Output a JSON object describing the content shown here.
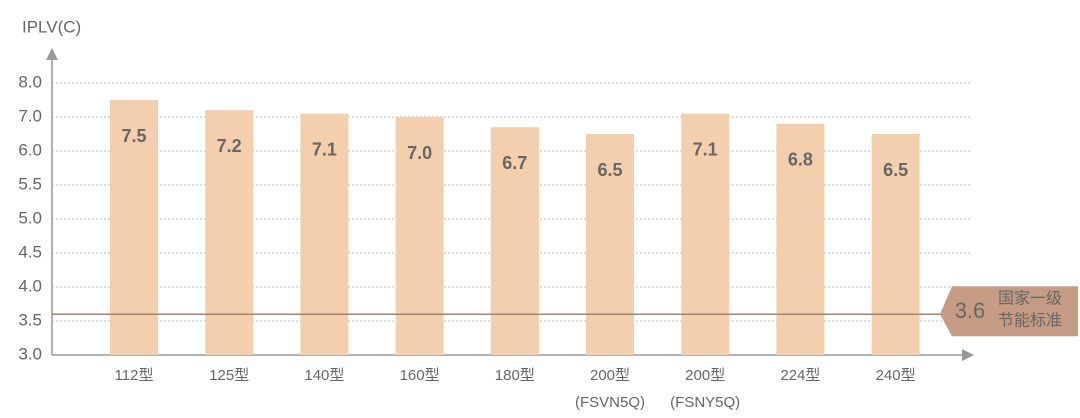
{
  "chart_data": {
    "type": "bar",
    "y_axis_label": "IPLV(C)",
    "categories": [
      "112型",
      "125型",
      "140型",
      "160型",
      "180型",
      "200型\n(FSVN5Q)",
      "200型\n(FSNY5Q)",
      "224型",
      "240型"
    ],
    "values": [
      7.5,
      7.2,
      7.1,
      7.0,
      6.7,
      6.5,
      7.1,
      6.8,
      6.5
    ],
    "value_labels": [
      "7.5",
      "7.2",
      "7.1",
      "7.0",
      "6.7",
      "6.5",
      "7.1",
      "6.8",
      "6.5"
    ],
    "color": "#f3cfad",
    "ylim": [
      3,
      8
    ],
    "yticks": [
      {
        "value": 3,
        "label": "3.0"
      },
      3.5,
      {
        "value": 4,
        "label": "4.0"
      },
      4.5,
      {
        "value": 5,
        "label": "5.0"
      },
      5.5,
      {
        "value": 6,
        "label": "6.0"
      },
      {
        "value": 7,
        "label": "7.0"
      },
      {
        "value": 8,
        "label": "8.0"
      }
    ],
    "grid": true,
    "reference_line": {
      "value": 3.6,
      "text_lines": [
        "国家一级",
        "节能标准"
      ],
      "color": "#a08672",
      "label_color": "#c59c83"
    }
  }
}
